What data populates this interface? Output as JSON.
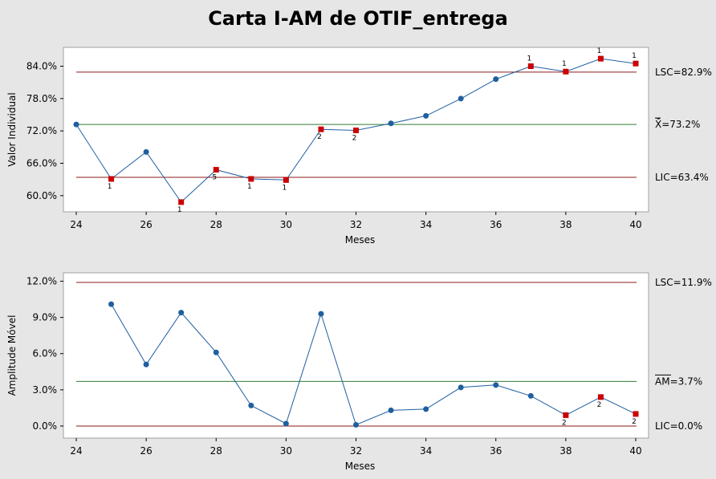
{
  "title": "Carta I-AM de OTIF_entrega",
  "colors": {
    "background": "#e6e6e6",
    "plot": "#ffffff",
    "line": "#1f5fa0",
    "point": "#1f5fa0",
    "flag_point": "#cc0000",
    "limit": "#8b1a1a",
    "center": "#2e7d32"
  },
  "chart_data": [
    {
      "type": "line",
      "name": "individual",
      "xlabel": "Meses",
      "ylabel": "Valor Individual",
      "xticks": [
        24,
        26,
        28,
        30,
        32,
        34,
        36,
        38,
        40
      ],
      "yticks": [
        "60.0%",
        "66.0%",
        "72.0%",
        "78.0%",
        "84.0%"
      ],
      "xlim": [
        24,
        40
      ],
      "ylim": [
        57.0,
        87.5
      ],
      "x": [
        24,
        25,
        26,
        27,
        28,
        29,
        30,
        31,
        32,
        33,
        34,
        35,
        36,
        37,
        38,
        39,
        40
      ],
      "values": [
        73.2,
        63.1,
        68.1,
        58.8,
        64.8,
        63.1,
        62.9,
        72.3,
        72.1,
        73.4,
        74.8,
        78.0,
        81.6,
        84.0,
        83.0,
        85.4,
        84.5
      ],
      "flags": [
        "",
        "1",
        "",
        "1",
        "5",
        "1",
        "1",
        "2",
        "2",
        "",
        "",
        "",
        "",
        "1",
        "1",
        "1",
        "1"
      ],
      "limits": [
        {
          "label": "LSC=82.9%",
          "value": 82.9,
          "kind": "limit"
        },
        {
          "label": "X̄=73.2%",
          "value": 73.2,
          "kind": "center"
        },
        {
          "label": "LIC=63.4%",
          "value": 63.4,
          "kind": "limit"
        }
      ]
    },
    {
      "type": "line",
      "name": "moving_range",
      "xlabel": "Meses",
      "ylabel": "Amplitude Móvel",
      "xticks": [
        24,
        26,
        28,
        30,
        32,
        34,
        36,
        38,
        40
      ],
      "yticks": [
        "0.0%",
        "3.0%",
        "6.0%",
        "9.0%",
        "12.0%"
      ],
      "xlim": [
        24,
        40
      ],
      "ylim": [
        -1.0,
        12.7
      ],
      "x": [
        25,
        26,
        27,
        28,
        29,
        30,
        31,
        32,
        33,
        34,
        35,
        36,
        37,
        38,
        39,
        40
      ],
      "values": [
        10.1,
        5.1,
        9.4,
        6.1,
        1.7,
        0.2,
        9.3,
        0.1,
        1.3,
        1.4,
        3.2,
        3.4,
        2.5,
        0.9,
        2.4,
        1.0
      ],
      "flags": [
        "",
        "",
        "",
        "",
        "",
        "",
        "",
        "",
        "",
        "",
        "",
        "",
        "",
        "2",
        "2",
        "2"
      ],
      "limits": [
        {
          "label": "LSC=11.9%",
          "value": 11.9,
          "kind": "limit"
        },
        {
          "label": "AM=3.7%",
          "value": 3.7,
          "kind": "center"
        },
        {
          "label": "LIC=0.0%",
          "value": 0.0,
          "kind": "limit"
        }
      ]
    }
  ]
}
